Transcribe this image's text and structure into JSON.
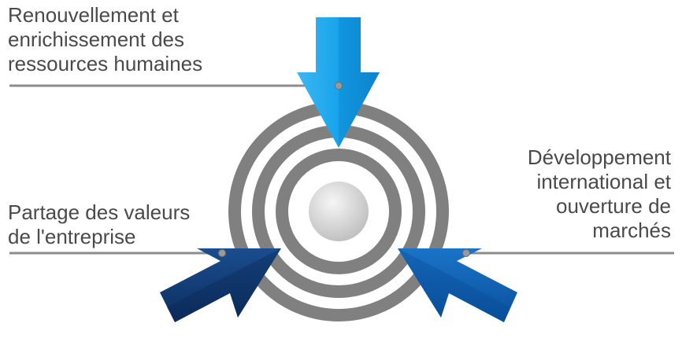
{
  "labels": {
    "top": [
      "Renouvellement et",
      "enrichissement des",
      "ressources humaines"
    ],
    "left": [
      "Partage des valeurs",
      "de l'entreprise"
    ],
    "right": [
      "Développement",
      "international et",
      "ouverture de",
      "marchés"
    ]
  },
  "colors": {
    "ring": "#808080",
    "ring_highlight": "#9a9a9a",
    "center": "#dcdcdc",
    "arrow_top": "#1aa3ec",
    "arrow_left": "#123e78",
    "arrow_right": "#1060b4",
    "connector": "#8c8c8c",
    "text": "#4a4a4a"
  },
  "icons": {
    "target": "target-icon",
    "arrows": [
      "arrow-down-icon",
      "arrow-right-icon",
      "arrow-left-icon"
    ]
  }
}
